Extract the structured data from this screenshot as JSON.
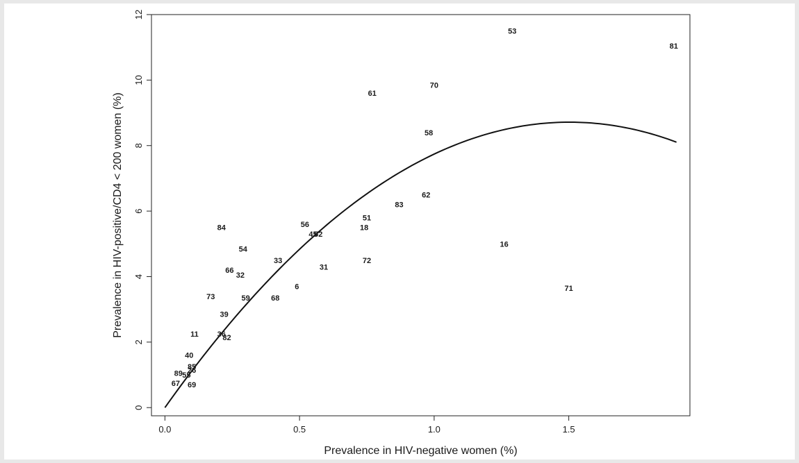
{
  "chart_data": {
    "type": "scatter",
    "xlabel": "Prevalence in HIV-negative women (%)",
    "ylabel": "Prevalence in HIV-positive/CD4 < 200  women (%)",
    "xlim": [
      -0.05,
      1.95
    ],
    "ylim": [
      -0.25,
      12.0
    ],
    "x_ticks": [
      0.0,
      0.5,
      1.0,
      1.5
    ],
    "x_tick_labels": [
      "0.0",
      "0.5",
      "1.0",
      "1.5"
    ],
    "y_ticks": [
      0,
      2,
      4,
      6,
      8,
      10,
      12
    ],
    "y_tick_labels": [
      "0",
      "2",
      "4",
      "6",
      "8",
      "10",
      "12"
    ],
    "grid": false,
    "legend": "none",
    "points": [
      {
        "label": "53",
        "x": 1.29,
        "y": 11.5
      },
      {
        "label": "81",
        "x": 1.89,
        "y": 11.05
      },
      {
        "label": "70",
        "x": 1.0,
        "y": 9.85
      },
      {
        "label": "61",
        "x": 0.77,
        "y": 9.6
      },
      {
        "label": "58",
        "x": 0.98,
        "y": 8.4
      },
      {
        "label": "62",
        "x": 0.97,
        "y": 6.5
      },
      {
        "label": "83",
        "x": 0.87,
        "y": 6.2
      },
      {
        "label": "51",
        "x": 0.75,
        "y": 5.8
      },
      {
        "label": "18",
        "x": 0.74,
        "y": 5.5
      },
      {
        "label": "56",
        "x": 0.52,
        "y": 5.6
      },
      {
        "label": "45",
        "x": 0.55,
        "y": 5.3
      },
      {
        "label": "52",
        "x": 0.57,
        "y": 5.3
      },
      {
        "label": "84",
        "x": 0.21,
        "y": 5.5
      },
      {
        "label": "54",
        "x": 0.29,
        "y": 4.85
      },
      {
        "label": "33",
        "x": 0.42,
        "y": 4.5
      },
      {
        "label": "72",
        "x": 0.75,
        "y": 4.5
      },
      {
        "label": "16",
        "x": 1.26,
        "y": 5.0
      },
      {
        "label": "31",
        "x": 0.59,
        "y": 4.3
      },
      {
        "label": "66",
        "x": 0.24,
        "y": 4.2
      },
      {
        "label": "32",
        "x": 0.28,
        "y": 4.05
      },
      {
        "label": "6",
        "x": 0.49,
        "y": 3.7
      },
      {
        "label": "71",
        "x": 1.5,
        "y": 3.65
      },
      {
        "label": "73",
        "x": 0.17,
        "y": 3.4
      },
      {
        "label": "59",
        "x": 0.3,
        "y": 3.35
      },
      {
        "label": "68",
        "x": 0.41,
        "y": 3.35
      },
      {
        "label": "39",
        "x": 0.22,
        "y": 2.85
      },
      {
        "label": "11",
        "x": 0.11,
        "y": 2.25
      },
      {
        "label": "36",
        "x": 0.21,
        "y": 2.25
      },
      {
        "label": "82",
        "x": 0.23,
        "y": 2.15
      },
      {
        "label": "40",
        "x": 0.09,
        "y": 1.6
      },
      {
        "label": "85",
        "x": 0.1,
        "y": 1.25
      },
      {
        "label": "26",
        "x": 0.1,
        "y": 1.15
      },
      {
        "label": "89",
        "x": 0.05,
        "y": 1.05
      },
      {
        "label": "55",
        "x": 0.08,
        "y": 1.0
      },
      {
        "label": "67",
        "x": 0.04,
        "y": 0.75
      },
      {
        "label": "69",
        "x": 0.1,
        "y": 0.7
      }
    ],
    "fit_curve": {
      "type": "quadratic",
      "a": 0,
      "b": 11.6,
      "c": -3.86,
      "x_range": [
        0.0,
        1.9
      ]
    }
  }
}
